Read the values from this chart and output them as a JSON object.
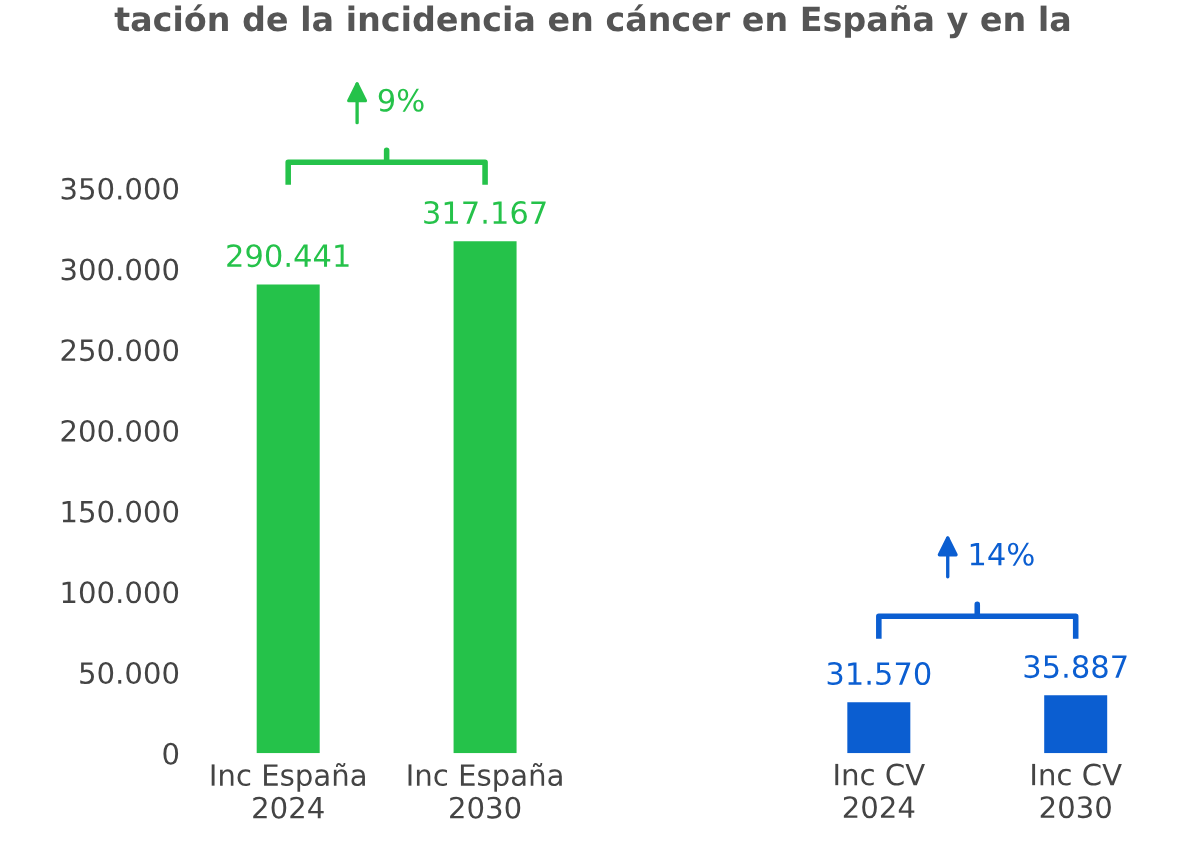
{
  "chart_data": {
    "type": "bar",
    "title": "tación de la incidencia en cáncer en España y en la",
    "categories": [
      "Inc España 2024",
      "Inc España 2030",
      null,
      "Inc CV 2024",
      "Inc CV 2030"
    ],
    "values": [
      290441,
      317167,
      null,
      31570,
      35887
    ],
    "colors": [
      "#25c24a",
      "#25c24a",
      "#25c24a",
      "#0b5ed1",
      "#0b5ed1"
    ],
    "value_labels": [
      "290.441",
      "317.167",
      null,
      "31.570",
      "35.887"
    ],
    "ylim": [
      0,
      350000
    ],
    "yticks": [
      {
        "value": 0,
        "label": "0"
      },
      {
        "value": 50000,
        "label": "50.000"
      },
      {
        "value": 100000,
        "label": "100.000"
      },
      {
        "value": 150000,
        "label": "150.000"
      },
      {
        "value": 200000,
        "label": "200.000"
      },
      {
        "value": 250000,
        "label": "250.000"
      },
      {
        "value": 300000,
        "label": "300.000"
      },
      {
        "value": 350000,
        "label": "350.000"
      }
    ],
    "annotations": [
      "9%",
      "14%"
    ],
    "grid": false
  }
}
